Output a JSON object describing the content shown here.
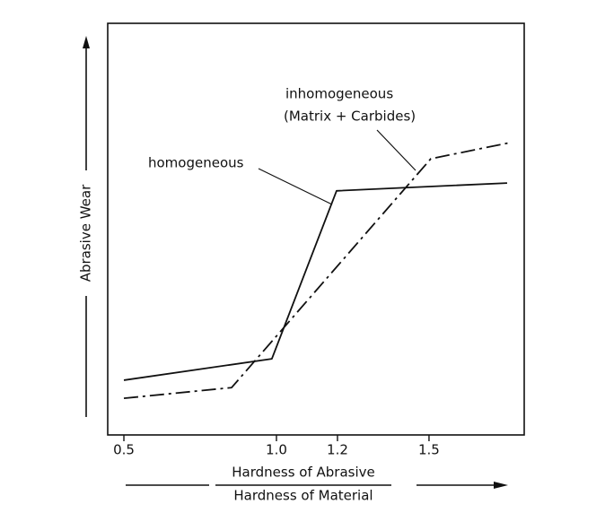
{
  "chart_data": {
    "type": "line",
    "ylabel": "Abrasive Wear",
    "xlabel": [
      "Hardness of Abrasive",
      "Hardness of Material"
    ],
    "xlim": [
      0.447,
      1.812
    ],
    "ylim": [
      0,
      100
    ],
    "xticks": [
      0.5,
      {
        "value": 1,
        "label": "1.0"
      },
      1.2,
      1.5
    ],
    "series": [
      {
        "name": "homogeneous",
        "color": "#111111",
        "dash": "none",
        "x": [
          0.5,
          0.985,
          1.197,
          1.756
        ],
        "values": [
          13.3,
          18.5,
          59.3,
          61.2
        ]
      },
      {
        "name": "inhomogeneous",
        "note": "(Matrix + Carbides)",
        "color": "#111111",
        "dash": "16 5 3 5",
        "x": [
          0.5,
          0.853,
          1.506,
          1.765
        ],
        "values": [
          8.9,
          11.5,
          67.1,
          71.0
        ]
      }
    ]
  }
}
